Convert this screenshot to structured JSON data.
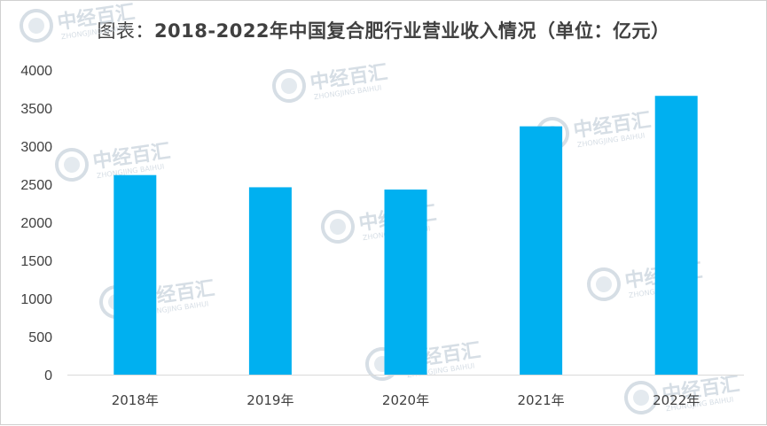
{
  "title": {
    "prefix": "图表：",
    "main": "2018-2022年中国复合肥行业营业收入情况（单位：亿元）"
  },
  "watermark": {
    "brand": "中经百汇",
    "sub": "ZHONGJING BAIHUI",
    "logo": "zj-logo-icon"
  },
  "colors": {
    "bar": "#00b0f0",
    "axis": "#d9d9d9",
    "text": "#404040"
  },
  "chart_data": {
    "type": "bar",
    "title": "图表：2018-2022年中国复合肥行业营业收入情况（单位：亿元）",
    "categories": [
      "2018年",
      "2019年",
      "2020年",
      "2021年",
      "2022年"
    ],
    "values": [
      2620,
      2460,
      2430,
      3260,
      3660
    ],
    "xlabel": "",
    "ylabel": "",
    "ylim": [
      0,
      4000
    ],
    "yticks": [
      0,
      500,
      1000,
      1500,
      2000,
      2500,
      3000,
      3500,
      4000
    ],
    "grid": false,
    "legend": "none"
  }
}
